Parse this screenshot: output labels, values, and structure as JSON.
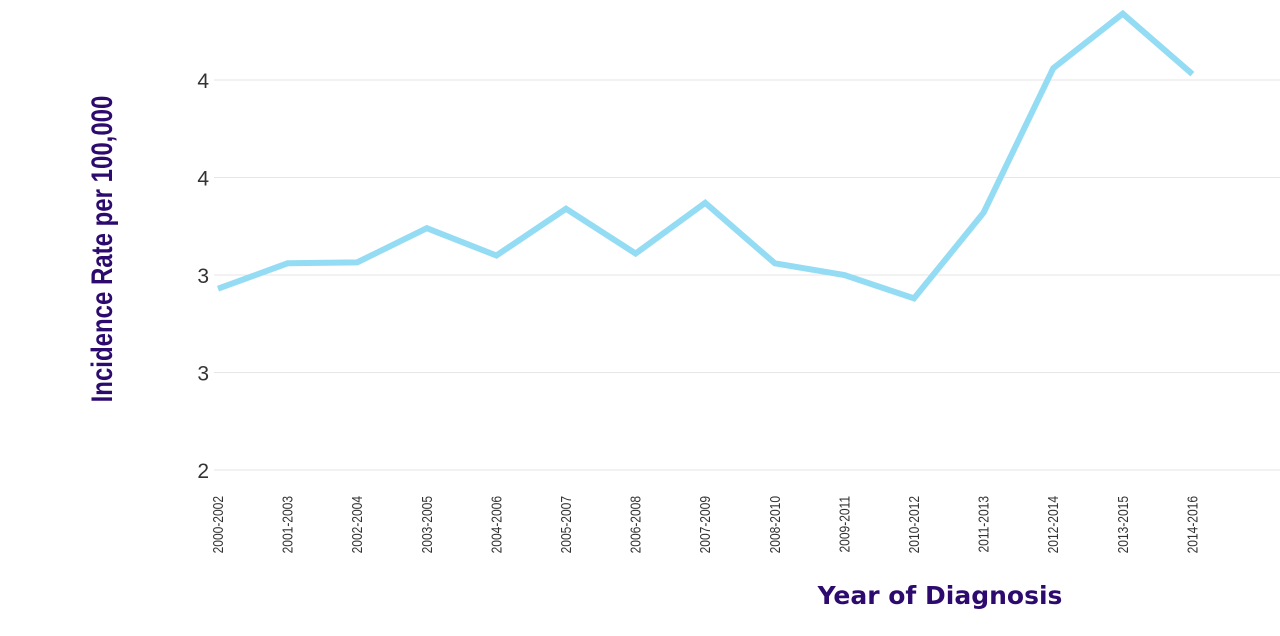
{
  "chart_data": {
    "type": "line",
    "title": "",
    "xlabel": "Year of Diagnosis",
    "ylabel": "Incidence Rate per 100,000",
    "categories": [
      "2000-2002",
      "2001-2003",
      "2002-2004",
      "2003-2005",
      "2004-2006",
      "2005-2007",
      "2006-2008",
      "2007-2009",
      "2008-2010",
      "2009-2011",
      "2010-2012",
      "2011-2013",
      "2012-2014",
      "2013-2015",
      "2014-2016"
    ],
    "series": [
      {
        "values": [
          2.93,
          3.06,
          3.065,
          3.24,
          3.1,
          3.34,
          3.11,
          3.37,
          3.06,
          3.0,
          2.88,
          3.32,
          4.06,
          4.34,
          4.03
        ]
      }
    ],
    "y_ticks": [
      {
        "value": 2,
        "label": "2"
      },
      {
        "value": 2.5,
        "label": "3"
      },
      {
        "value": 3,
        "label": "3"
      },
      {
        "value": 3.5,
        "label": "4"
      },
      {
        "value": 4,
        "label": "4"
      }
    ],
    "ylim": [
      2,
      4
    ],
    "grid": true,
    "legend": "none",
    "colors": {
      "line": "#94dcf4",
      "grid": "#e6e6e6",
      "title": "#2d0a6e"
    }
  }
}
